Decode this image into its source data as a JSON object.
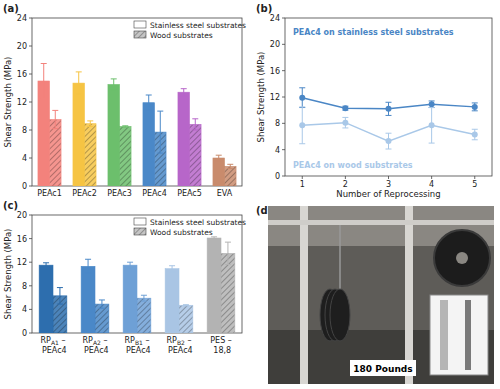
{
  "chart_data": [
    {
      "type": "bar",
      "title": "(a)",
      "y_label": "Shear Strength (MPa)",
      "categories": [
        "PEAc1",
        "PEAc2",
        "PEAc3",
        "PEAc4",
        "PEAc5",
        "EVA"
      ],
      "series": [
        {
          "name": "Stainless steel substrates",
          "colors": [
            "#f3827c",
            "#f6c443",
            "#6cbf6c",
            "#4a88c8",
            "#b766c9",
            "#c98b6c"
          ],
          "values": [
            15.0,
            14.7,
            14.5,
            11.9,
            13.4,
            4.0
          ],
          "errors": [
            2.5,
            1.6,
            0.8,
            1.1,
            0.5,
            0.4
          ]
        },
        {
          "name": "Wood substrates",
          "colors": [
            "#f3827c",
            "#f6c443",
            "#6cbf6c",
            "#4a88c8",
            "#b766c9",
            "#c98b6c"
          ],
          "values": [
            9.5,
            8.9,
            8.5,
            7.7,
            8.8,
            2.8
          ],
          "errors": [
            1.3,
            0.4,
            0.1,
            3.0,
            0.8,
            0.3
          ]
        }
      ],
      "ylim": [
        0,
        24
      ],
      "yticks": [
        0,
        4,
        8,
        12,
        16,
        20,
        24
      ],
      "legend": "upper right"
    },
    {
      "type": "line",
      "title": "(b)",
      "x_label": "Number of Reprocessing",
      "y_label": "Shear Strength (MPa)",
      "x": [
        1,
        2,
        3,
        4,
        5
      ],
      "series": [
        {
          "name": "PEAc4 on stainless steel substrates",
          "color": "#4a86c5",
          "marker": "circle",
          "values": [
            11.9,
            10.3,
            10.2,
            10.9,
            10.5
          ],
          "errors": [
            1.5,
            0.3,
            1.0,
            0.5,
            0.6
          ]
        },
        {
          "name": "PEAc4 on wood substrates",
          "color": "#a9c8e8",
          "marker": "circle",
          "values": [
            7.7,
            8.1,
            5.3,
            7.7,
            6.3
          ],
          "errors": [
            2.8,
            0.8,
            1.2,
            2.7,
            0.8
          ]
        }
      ],
      "xlim": [
        0.6,
        5.4
      ],
      "xticks": [
        1,
        2,
        3,
        4,
        5
      ],
      "ylim": [
        0,
        24
      ],
      "yticks": [
        0,
        4,
        8,
        12,
        16,
        20,
        24
      ]
    },
    {
      "type": "bar",
      "title": "(c)",
      "y_label": "Shear Strength (MPa)",
      "categories": [
        "RPA1 – PEAc4",
        "RPA2 – PEAc4",
        "RPB1 – PEAc4",
        "RPB2 – PEAc4",
        "PES – 18,8"
      ],
      "series": [
        {
          "name": "Stainless steel substrates",
          "colors": [
            "#2d6eae",
            "#4a88c8",
            "#6ea0d6",
            "#a9c5e4",
            "#b3b3b3"
          ],
          "values": [
            11.5,
            11.3,
            11.5,
            10.9,
            16.1
          ],
          "errors": [
            0.4,
            1.2,
            0.5,
            0.5,
            0.2
          ]
        },
        {
          "name": "Wood substrates",
          "colors": [
            "#2d6eae",
            "#4a88c8",
            "#6ea0d6",
            "#a9c5e4",
            "#b3b3b3"
          ],
          "values": [
            6.3,
            4.9,
            5.9,
            4.7,
            13.5
          ],
          "errors": [
            1.4,
            0.7,
            0.5,
            0.1,
            1.9
          ]
        }
      ],
      "ylim": [
        0,
        20
      ],
      "yticks": [
        0,
        4,
        8,
        12,
        16,
        20
      ],
      "legend": "upper right"
    }
  ],
  "photo": {
    "label": "(d)",
    "caption": "180 Pounds"
  }
}
